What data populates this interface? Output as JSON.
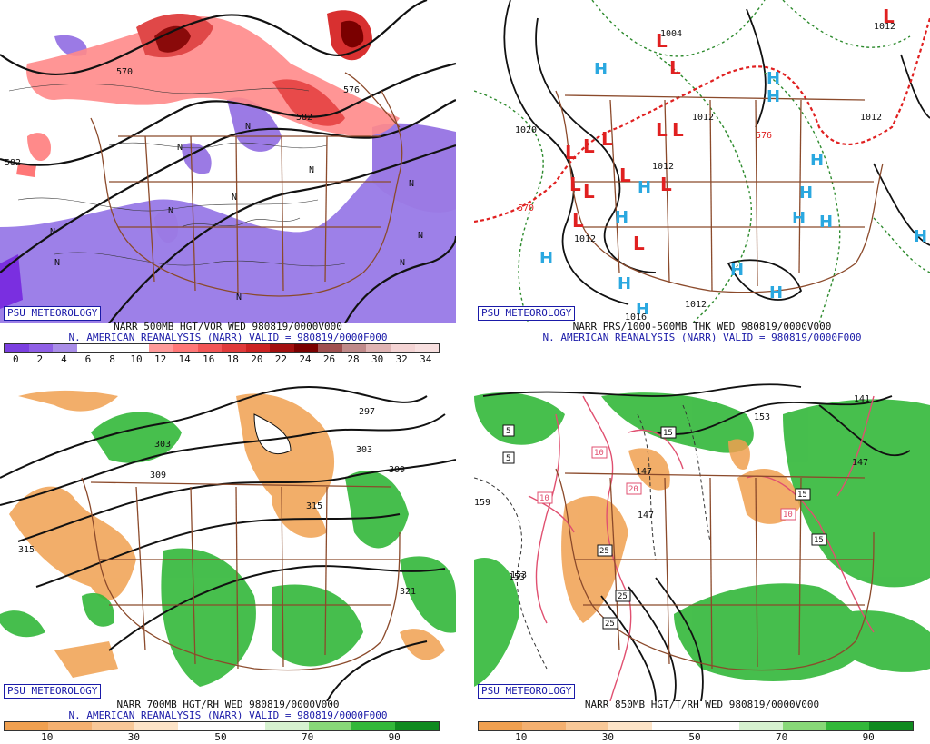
{
  "colors": {
    "vort_scale": [
      "#7b3fe0",
      "#8f5fe6",
      "#a98de8",
      "#ffffff",
      "#ffffff",
      "#ffffff",
      "#ff9a9a",
      "#ff7777",
      "#f25555",
      "#e03a3a",
      "#cc2222",
      "#a30f0f",
      "#7a0000",
      "#a05050",
      "#c08a8a",
      "#e0b4b4",
      "#f4d4d4",
      "#f8e0e0"
    ],
    "rh_scale": [
      "#f0a050",
      "#f4b070",
      "#f8c898",
      "#fde4c8",
      "#ffffff",
      "#ffffff",
      "#d6f2d0",
      "#88d878",
      "#33b83a",
      "#0f8a1f"
    ]
  },
  "panels": {
    "tl": {
      "credit": "PSU METEOROLOGY",
      "title": "NARR 500MB HGT/VOR WED 980819/0000V000",
      "subtitle": "N. AMERICAN REANALYSIS (NARR) VALID = 980819/0000F000",
      "ticks": [
        "0",
        "2",
        "4",
        "6",
        "8",
        "10",
        "12",
        "14",
        "16",
        "18",
        "20",
        "22",
        "24",
        "26",
        "28",
        "30",
        "32",
        "34"
      ],
      "labels": [
        "570",
        "582",
        "576",
        "582",
        "N",
        "N",
        "N",
        "N",
        "N",
        "N",
        "N",
        "N",
        "N",
        "N",
        "N"
      ]
    },
    "tr": {
      "credit": "PSU METEOROLOGY",
      "title": "NARR PRS/1000-500MB THK WED 980819/0000V000",
      "subtitle": "N. AMERICAN REANALYSIS (NARR) VALID = 980819/0000F000",
      "labels": [
        "1020",
        "1004",
        "1012",
        "1012",
        "1012",
        "1016",
        "1012",
        "1012",
        "1012",
        "570",
        "576",
        "L",
        "H"
      ]
    },
    "bl": {
      "credit": "PSU METEOROLOGY",
      "title": "NARR 700MB HGT/RH WED 980819/0000V000",
      "subtitle": "N. AMERICAN REANALYSIS (NARR) VALID = 980819/0000F000",
      "ticks": [
        "10",
        "30",
        "50",
        "70",
        "90"
      ],
      "labels": [
        "297",
        "303",
        "309",
        "309",
        "303",
        "315",
        "315",
        "321"
      ]
    },
    "br": {
      "credit": "PSU METEOROLOGY",
      "title": "NARR 850MB HGT/T/RH WED 980819/0000V000",
      "ticks": [
        "10",
        "30",
        "50",
        "70",
        "90"
      ],
      "labels": [
        "153",
        "147",
        "147",
        "141",
        "147",
        "153",
        "159",
        "153",
        "5",
        "5",
        "15",
        "15",
        "15",
        "25",
        "25",
        "25",
        "10",
        "10",
        "10",
        "20"
      ]
    }
  }
}
